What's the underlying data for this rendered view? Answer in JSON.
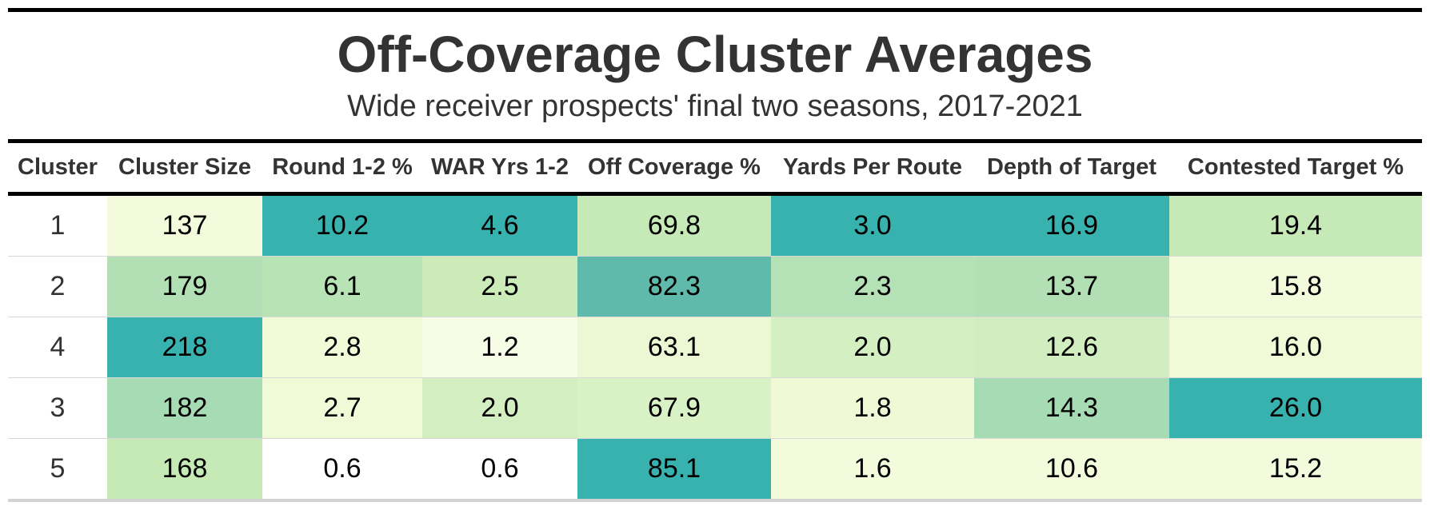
{
  "chart_data": {
    "type": "table",
    "title": "Off-Coverage Cluster Averages",
    "subtitle": "Wide receiver prospects' final two seasons, 2017-2021",
    "columns": [
      "Cluster",
      "Cluster Size",
      "Round 1-2 %",
      "WAR Yrs 1-2",
      "Off Coverage %",
      "Yards Per Route",
      "Depth of Target",
      "Contested Target %"
    ],
    "rows": [
      {
        "cluster": "1",
        "values": [
          "137",
          "10.2",
          "4.6",
          "69.8",
          "3.0",
          "16.9",
          "19.4"
        ]
      },
      {
        "cluster": "2",
        "values": [
          "179",
          "6.1",
          "2.5",
          "82.3",
          "2.3",
          "13.7",
          "15.8"
        ]
      },
      {
        "cluster": "4",
        "values": [
          "218",
          "2.8",
          "1.2",
          "63.1",
          "2.0",
          "12.6",
          "16.0"
        ]
      },
      {
        "cluster": "3",
        "values": [
          "182",
          "2.7",
          "2.0",
          "67.9",
          "1.8",
          "14.3",
          "26.0"
        ]
      },
      {
        "cluster": "5",
        "values": [
          "168",
          "0.6",
          "0.6",
          "85.1",
          "1.6",
          "10.6",
          "15.2"
        ]
      }
    ],
    "cell_colors": [
      [
        "#f3fbdc",
        "#37b2ae",
        "#37b2ae",
        "#c5e9b7",
        "#37b2ae",
        "#37b2ae",
        "#c5e9b7"
      ],
      [
        "#b2e0b4",
        "#b7e3b5",
        "#cbebb9",
        "#5fbaab",
        "#b4e1b5",
        "#b2e0b4",
        "#f3fbdc"
      ],
      [
        "#37b2ae",
        "#f2fbd8",
        "#f6fce6",
        "#ebf8d3",
        "#d4efc1",
        "#d2eec0",
        "#f1fad6"
      ],
      [
        "#a6dbb4",
        "#f1fad6",
        "#d3eec0",
        "#d8f1c5",
        "#f0f9d5",
        "#a6dbb4",
        "#37b2ae"
      ],
      [
        "#c5eab6",
        "#ffffff",
        "#ffffff",
        "#37b2ae",
        "#f3fbdc",
        "#f3fbdc",
        "#f3fbdc"
      ]
    ]
  }
}
